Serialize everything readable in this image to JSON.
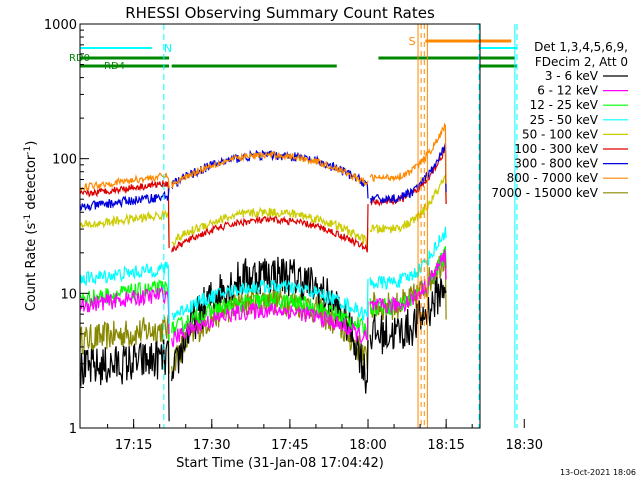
{
  "chart_data": {
    "type": "line",
    "title": "RHESSI Observing Summary Count Rates",
    "xlabel": "Start Time (31-Jan-08 17:04:42)",
    "ylabel_main": "Count Rate (s",
    "ylabel_sup1": "-1",
    "ylabel_mid": " detector",
    "ylabel_sup2": "-1",
    "ylabel_end": ")",
    "footer": "13-Oct-2021 18:06",
    "y_scale": "log",
    "ylim": [
      1,
      1000
    ],
    "xlim_min": [
      4.7,
      81.5
    ],
    "y_ticks": [
      {
        "v": 1,
        "label": "1"
      },
      {
        "v": 10,
        "label": "10"
      },
      {
        "v": 100,
        "label": "100"
      },
      {
        "v": 1000,
        "label": "1000"
      }
    ],
    "x_ticks": [
      {
        "m": 15,
        "label": "17:15"
      },
      {
        "m": 30,
        "label": "17:30"
      },
      {
        "m": 45,
        "label": "17:45"
      },
      {
        "m": 60,
        "label": "18:00"
      },
      {
        "m": 75,
        "label": "18:15"
      },
      {
        "m": 90,
        "label": "18:30"
      }
    ],
    "legend_header": [
      "Det 1,3,4,5,6,9,",
      "FDecim 2, Att 0"
    ],
    "series": [
      {
        "name": "3 - 6 keV",
        "color": "#000000"
      },
      {
        "name": "6 - 12 keV",
        "color": "#ff00ff"
      },
      {
        "name": "12 - 25 keV",
        "color": "#00ff00"
      },
      {
        "name": "25 - 50 keV",
        "color": "#00ffff"
      },
      {
        "name": "50 - 100 keV",
        "color": "#cccc00"
      },
      {
        "name": "100 - 300 keV",
        "color": "#dd0000"
      },
      {
        "name": "300 - 800 keV",
        "color": "#0000dd"
      },
      {
        "name": "800 - 7000 keV",
        "color": "#ff8800"
      },
      {
        "name": "7000 - 15000 keV",
        "color": "#888800"
      }
    ],
    "flags": [
      {
        "label": "N",
        "color": "#00ffff"
      },
      {
        "label": "RD0",
        "color": "#008800"
      },
      {
        "label": "RD4",
        "color": "#008800"
      },
      {
        "label": "S",
        "color": "#ff8800"
      }
    ]
  }
}
